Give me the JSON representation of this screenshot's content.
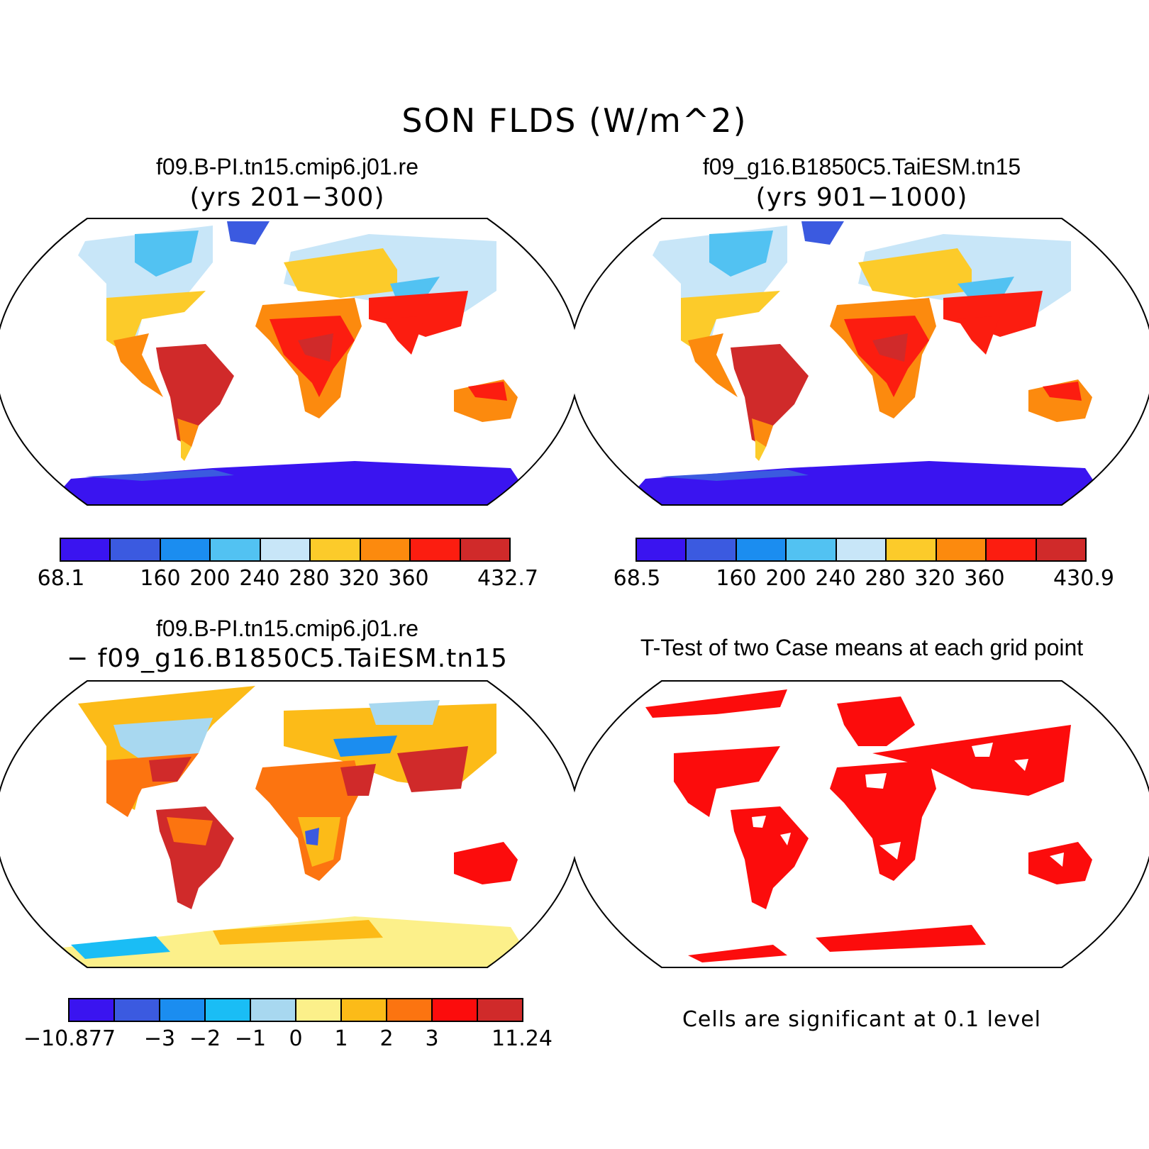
{
  "title": "SON FLDS (W/m^2)",
  "panels": {
    "top_left": {
      "title": "f09.B-PI.tn15.cmip6.j01.re",
      "subtitle": "(yrs 201−300)",
      "colorbar": {
        "colors": [
          "#3a14f0",
          "#3b5ae0",
          "#1b8df0",
          "#52c2f2",
          "#c8e6f8",
          "#fccb2a",
          "#fc8a0e",
          "#fc1d10",
          "#d02a2a"
        ],
        "labels": [
          "68.1",
          "160",
          "200",
          "240",
          "280",
          "320",
          "360",
          "432.7"
        ]
      }
    },
    "top_right": {
      "title": "f09_g16.B1850C5.TaiESM.tn15",
      "subtitle": "(yrs 901−1000)",
      "colorbar": {
        "colors": [
          "#3a14f0",
          "#3b5ae0",
          "#1b8df0",
          "#52c2f2",
          "#c8e6f8",
          "#fccb2a",
          "#fc8a0e",
          "#fc1d10",
          "#d02a2a"
        ],
        "labels": [
          "68.5",
          "160",
          "200",
          "240",
          "280",
          "320",
          "360",
          "430.9"
        ]
      }
    },
    "bottom_left": {
      "title": "f09.B-PI.tn15.cmip6.j01.re",
      "subtitle": "− f09_g16.B1850C5.TaiESM.tn15",
      "colorbar": {
        "colors": [
          "#3a14f0",
          "#3b5ae0",
          "#1b8df0",
          "#1abdf5",
          "#a8d8f0",
          "#fcf08a",
          "#fcbb18",
          "#fc7410",
          "#fc0c0c",
          "#d02a2a"
        ],
        "labels": [
          "−10.877",
          "−3",
          "−2",
          "−1",
          "0",
          "1",
          "2",
          "3",
          "11.24"
        ]
      }
    },
    "bottom_right": {
      "title": "T-Test of two Case means at each grid point",
      "note": "Cells are significant at 0.1 level"
    }
  }
}
